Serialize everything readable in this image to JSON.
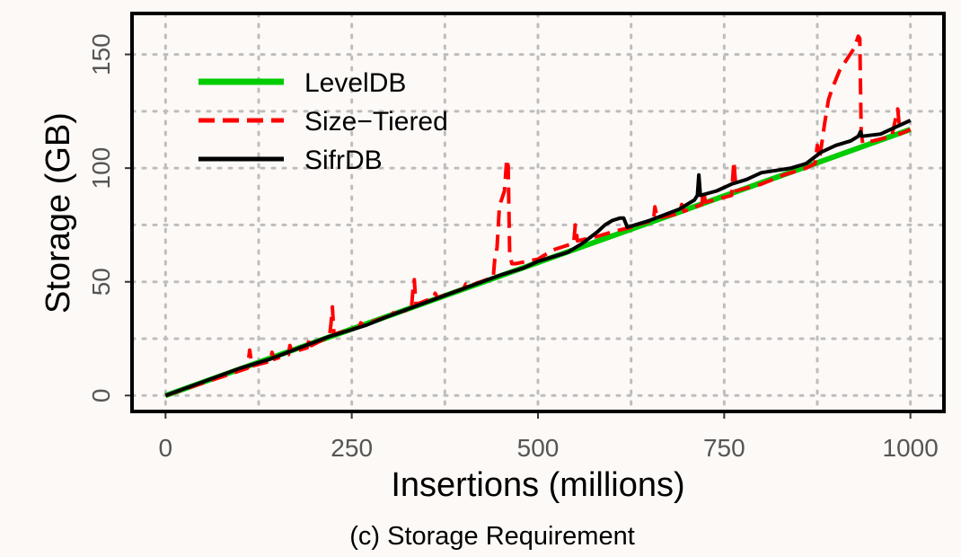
{
  "chart_data": {
    "type": "line",
    "caption": "(c) Storage Requirement",
    "xlabel": "Insertions (millions)",
    "ylabel": "Storage (GB)",
    "xlim": [
      -45,
      1045
    ],
    "ylim": [
      -7,
      168
    ],
    "x_ticks": [
      0,
      250,
      500,
      750,
      1000
    ],
    "y_ticks": [
      0,
      50,
      100,
      150
    ],
    "grid": true,
    "grid_style": "dotted",
    "legend_position": "top-left",
    "colors": {
      "background": "#fdf9f7",
      "panel": "#fdf9f7",
      "grid": "#bdbdbd",
      "axis_text": "#555555"
    },
    "series": [
      {
        "name": "LevelDB",
        "color": "#00cc00",
        "dash": "solid",
        "points": [
          [
            0,
            0
          ],
          [
            1000,
            117
          ]
        ]
      },
      {
        "name": "Size−Tiered",
        "color": "#ff0000",
        "dash": "dashed",
        "points": [
          [
            0,
            0
          ],
          [
            110,
            12
          ],
          [
            113,
            20
          ],
          [
            116,
            13
          ],
          [
            140,
            15
          ],
          [
            143,
            19
          ],
          [
            146,
            16
          ],
          [
            165,
            18
          ],
          [
            167,
            22
          ],
          [
            170,
            19
          ],
          [
            190,
            21
          ],
          [
            193,
            25
          ],
          [
            196,
            22
          ],
          [
            220,
            26
          ],
          [
            222,
            31
          ],
          [
            224,
            39
          ],
          [
            226,
            27
          ],
          [
            260,
            30
          ],
          [
            262,
            32
          ],
          [
            265,
            31
          ],
          [
            300,
            35
          ],
          [
            303,
            37
          ],
          [
            306,
            36
          ],
          [
            330,
            38
          ],
          [
            332,
            46
          ],
          [
            334,
            51
          ],
          [
            336,
            40
          ],
          [
            360,
            43
          ],
          [
            362,
            45
          ],
          [
            365,
            43
          ],
          [
            400,
            47
          ],
          [
            403,
            49
          ],
          [
            406,
            48
          ],
          [
            440,
            52
          ],
          [
            442,
            60
          ],
          [
            445,
            65
          ],
          [
            448,
            82
          ],
          [
            450,
            85
          ],
          [
            455,
            90
          ],
          [
            458,
            104
          ],
          [
            460,
            101
          ],
          [
            462,
            62
          ],
          [
            465,
            58
          ],
          [
            470,
            58
          ],
          [
            500,
            60
          ],
          [
            520,
            64
          ],
          [
            548,
            67
          ],
          [
            550,
            75
          ],
          [
            553,
            68
          ],
          [
            580,
            70
          ],
          [
            600,
            72
          ],
          [
            625,
            74
          ],
          [
            628,
            77
          ],
          [
            631,
            75
          ],
          [
            655,
            77
          ],
          [
            657,
            83
          ],
          [
            660,
            78
          ],
          [
            690,
            80
          ],
          [
            693,
            84
          ],
          [
            696,
            81
          ],
          [
            720,
            84
          ],
          [
            722,
            90
          ],
          [
            725,
            85
          ],
          [
            760,
            88
          ],
          [
            763,
            103
          ],
          [
            766,
            90
          ],
          [
            800,
            93
          ],
          [
            830,
            97
          ],
          [
            860,
            100
          ],
          [
            872,
            102
          ],
          [
            875,
            110
          ],
          [
            878,
            104
          ],
          [
            885,
            120
          ],
          [
            890,
            130
          ],
          [
            895,
            135
          ],
          [
            905,
            143
          ],
          [
            915,
            148
          ],
          [
            925,
            153
          ],
          [
            930,
            158
          ],
          [
            932,
            157
          ],
          [
            934,
            115
          ],
          [
            936,
            111
          ],
          [
            950,
            112
          ],
          [
            975,
            114
          ],
          [
            983,
            126
          ],
          [
            986,
            115
          ],
          [
            1000,
            117
          ]
        ]
      },
      {
        "name": "SifrDB",
        "color": "#000000",
        "dash": "solid",
        "points": [
          [
            0,
            0
          ],
          [
            50,
            6
          ],
          [
            100,
            12
          ],
          [
            140,
            16
          ],
          [
            180,
            21
          ],
          [
            220,
            26
          ],
          [
            250,
            29
          ],
          [
            270,
            31
          ],
          [
            300,
            35
          ],
          [
            350,
            41
          ],
          [
            400,
            47
          ],
          [
            450,
            53
          ],
          [
            480,
            56
          ],
          [
            500,
            59
          ],
          [
            540,
            63
          ],
          [
            560,
            67
          ],
          [
            580,
            72
          ],
          [
            590,
            75
          ],
          [
            600,
            77
          ],
          [
            610,
            78
          ],
          [
            615,
            78
          ],
          [
            620,
            74
          ],
          [
            650,
            77
          ],
          [
            690,
            82
          ],
          [
            700,
            84
          ],
          [
            710,
            86
          ],
          [
            714,
            88
          ],
          [
            716,
            97
          ],
          [
            718,
            88
          ],
          [
            740,
            90
          ],
          [
            760,
            93
          ],
          [
            780,
            95
          ],
          [
            800,
            98
          ],
          [
            820,
            99
          ],
          [
            840,
            100
          ],
          [
            860,
            102
          ],
          [
            880,
            107
          ],
          [
            900,
            110
          ],
          [
            920,
            112
          ],
          [
            930,
            114
          ],
          [
            933,
            116
          ],
          [
            935,
            114
          ],
          [
            960,
            115
          ],
          [
            980,
            118
          ],
          [
            1000,
            121
          ]
        ]
      }
    ]
  }
}
